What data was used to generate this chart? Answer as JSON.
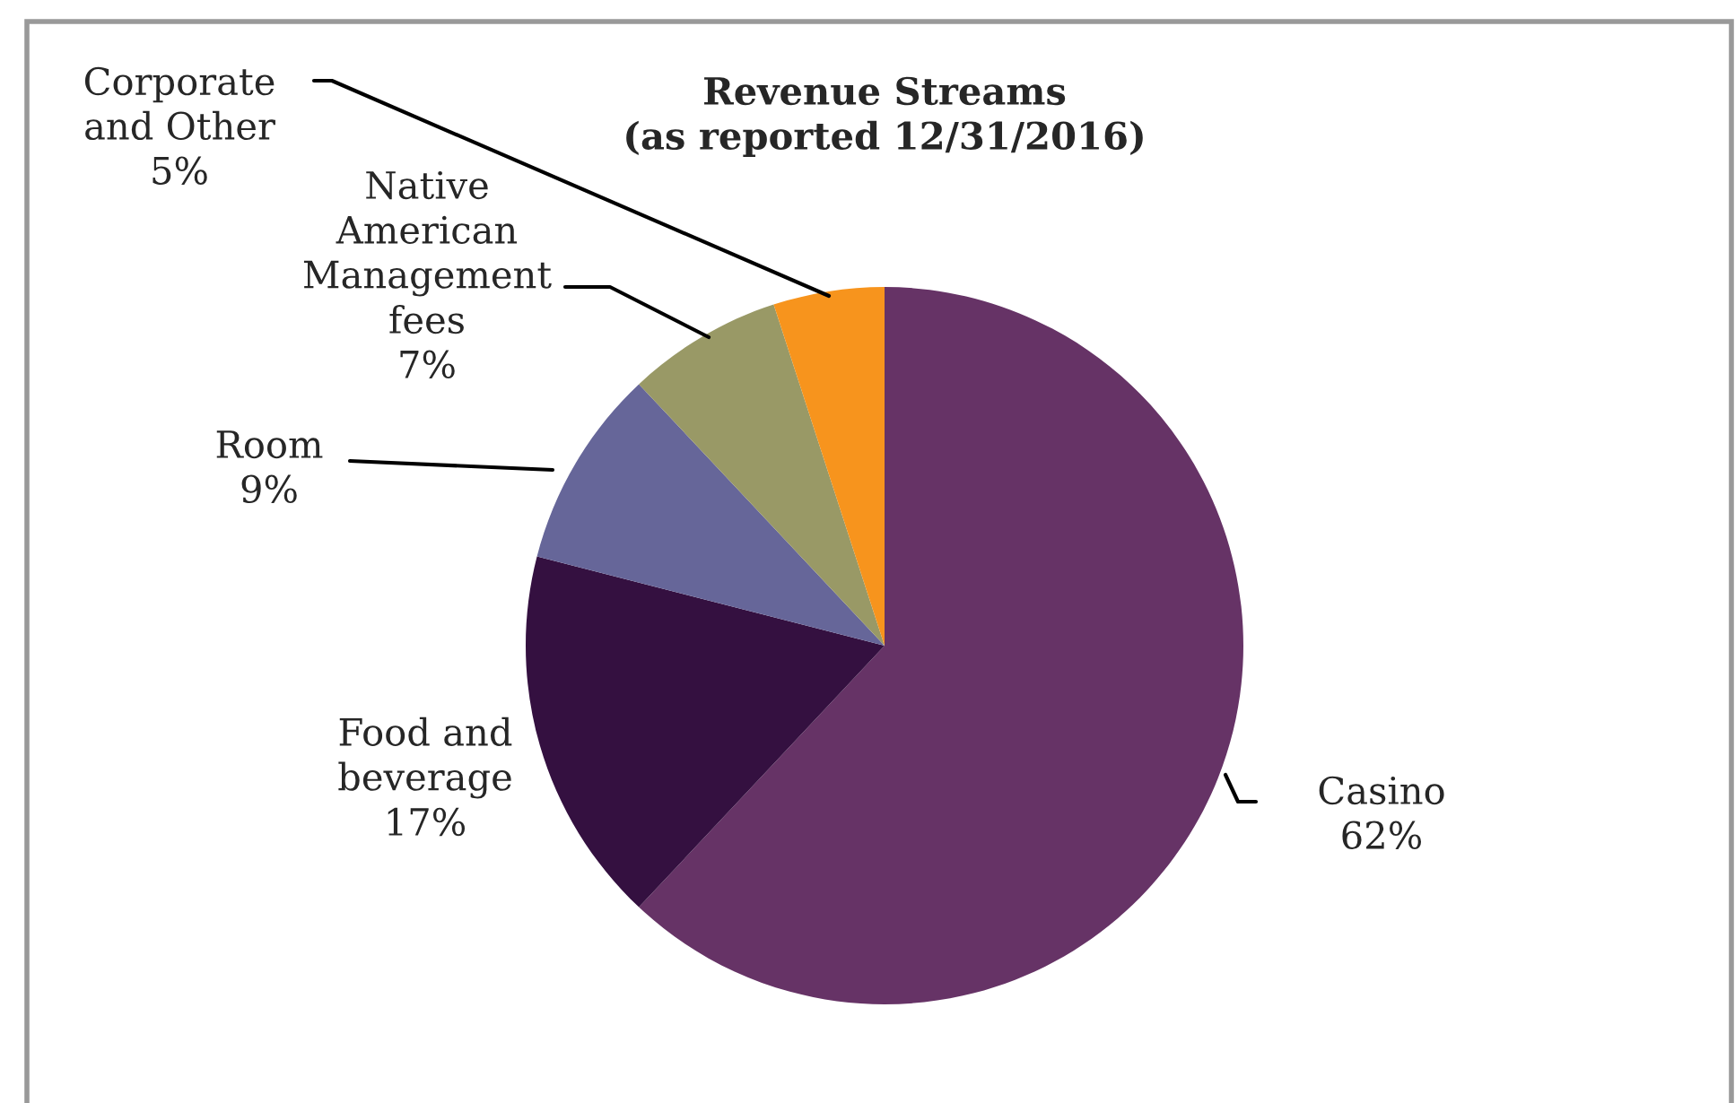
{
  "chart_data": {
    "type": "pie",
    "title": "Revenue Streams\n(as reported 12/31/2016)",
    "categories": [
      "Casino",
      "Food and\nbeverage",
      "Room",
      "Native\nAmerican\nManagement\nfees",
      "Corporate\nand Other"
    ],
    "values": [
      62,
      17,
      9,
      7,
      5
    ],
    "value_labels": [
      "62%",
      "17%",
      "9%",
      "7%",
      "5%"
    ],
    "colors": [
      "#663366",
      "#341040",
      "#666699",
      "#999966",
      "#f7941d"
    ]
  }
}
